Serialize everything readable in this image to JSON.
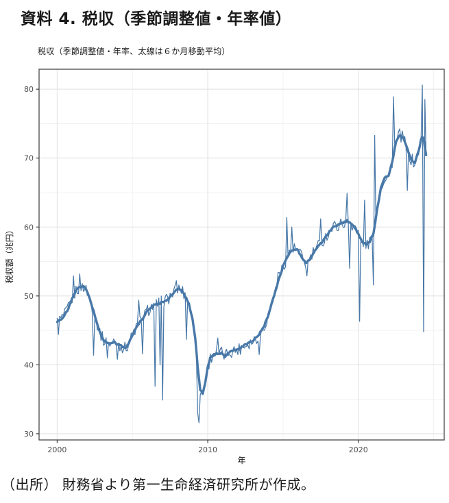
{
  "page": {
    "title": "資料 4. 税収（季節調整値・年率値）",
    "source_note": "（出所） 財務省より第一生命経済研究所が作成。"
  },
  "chart_data": {
    "type": "line",
    "title": "税収（季節調整値・年率、太線は６か月移動平均）",
    "xlabel": "年",
    "ylabel": "税収額（兆円）",
    "xlim": [
      1998.8,
      2025.7
    ],
    "ylim": [
      29.1,
      82.9
    ],
    "x_major_ticks": [
      2000,
      2010,
      2020
    ],
    "x_minor_gridlines": [
      2005,
      2015,
      2025
    ],
    "y_major_ticks": [
      30,
      40,
      50,
      60,
      70,
      80
    ],
    "y_minor_gridlines": [
      35,
      45,
      55,
      65,
      75
    ],
    "grid": true,
    "legend_position": "none",
    "x_start": 2000.0,
    "x_end": 2024.5,
    "x_step_months": 1,
    "noise_amplitude": 0.95,
    "ma_wiggle_amplitude": 0.12,
    "series": [
      {
        "name": "税収（月次、季節調整値・年率）",
        "role": "monthly-thin",
        "derive": "ma6_plus_noise_and_spikes",
        "spikes": [
          [
            2000.083,
            44.4
          ],
          [
            2001.083,
            52.9
          ],
          [
            2001.5,
            53.2
          ],
          [
            2002.417,
            41.4
          ],
          [
            2003.333,
            41.0
          ],
          [
            2004.0,
            40.8
          ],
          [
            2005.417,
            49.4
          ],
          [
            2005.667,
            41.6
          ],
          [
            2006.5,
            36.9
          ],
          [
            2006.833,
            40.0
          ],
          [
            2007.0,
            34.9
          ],
          [
            2007.917,
            52.2
          ],
          [
            2008.583,
            43.7
          ],
          [
            2009.333,
            33.0
          ],
          [
            2009.45,
            31.6
          ],
          [
            2010.667,
            43.9
          ],
          [
            2013.417,
            41.5
          ],
          [
            2014.667,
            53.4
          ],
          [
            2015.25,
            61.4
          ],
          [
            2015.583,
            60.0
          ],
          [
            2016.583,
            52.9
          ],
          [
            2017.5,
            61.2
          ],
          [
            2019.25,
            64.9
          ],
          [
            2019.417,
            54.0
          ],
          [
            2020.083,
            46.3
          ],
          [
            2020.417,
            63.9
          ],
          [
            2021.0,
            51.6
          ],
          [
            2021.083,
            73.3
          ],
          [
            2022.333,
            78.9
          ],
          [
            2023.25,
            65.3
          ],
          [
            2024.25,
            80.6
          ],
          [
            2024.333,
            44.8
          ],
          [
            2024.417,
            78.5
          ],
          [
            2024.5,
            70.4
          ]
        ]
      },
      {
        "name": "６か月移動平均",
        "role": "ma6-thick",
        "points": [
          [
            2000.0,
            46.2
          ],
          [
            2000.25,
            46.6
          ],
          [
            2000.5,
            47.2
          ],
          [
            2000.75,
            48.2
          ],
          [
            2001.0,
            49.6
          ],
          [
            2001.25,
            50.8
          ],
          [
            2001.5,
            51.3
          ],
          [
            2001.75,
            51.4
          ],
          [
            2002.0,
            50.6
          ],
          [
            2002.25,
            49.0
          ],
          [
            2002.5,
            47.2
          ],
          [
            2002.75,
            45.3
          ],
          [
            2003.0,
            43.9
          ],
          [
            2003.25,
            43.2
          ],
          [
            2003.5,
            43.1
          ],
          [
            2003.75,
            43.3
          ],
          [
            2004.0,
            43.0
          ],
          [
            2004.25,
            42.8
          ],
          [
            2004.5,
            42.4
          ],
          [
            2004.75,
            43.1
          ],
          [
            2005.0,
            44.3
          ],
          [
            2005.25,
            45.4
          ],
          [
            2005.5,
            46.2
          ],
          [
            2005.75,
            46.9
          ],
          [
            2006.0,
            47.9
          ],
          [
            2006.25,
            48.4
          ],
          [
            2006.5,
            48.7
          ],
          [
            2006.75,
            48.9
          ],
          [
            2007.0,
            49.1
          ],
          [
            2007.25,
            49.4
          ],
          [
            2007.5,
            49.9
          ],
          [
            2007.75,
            50.5
          ],
          [
            2008.0,
            51.0
          ],
          [
            2008.25,
            50.9
          ],
          [
            2008.5,
            50.0
          ],
          [
            2008.75,
            48.8
          ],
          [
            2009.0,
            46.6
          ],
          [
            2009.17,
            43.8
          ],
          [
            2009.33,
            39.8
          ],
          [
            2009.5,
            36.3
          ],
          [
            2009.67,
            35.9
          ],
          [
            2009.83,
            37.3
          ],
          [
            2010.0,
            39.6
          ],
          [
            2010.17,
            41.0
          ],
          [
            2010.33,
            41.4
          ],
          [
            2010.58,
            41.6
          ],
          [
            2010.83,
            41.7
          ],
          [
            2011.0,
            41.6
          ],
          [
            2011.17,
            41.3
          ],
          [
            2011.42,
            41.9
          ],
          [
            2011.75,
            42.1
          ],
          [
            2012.0,
            42.2
          ],
          [
            2012.33,
            42.7
          ],
          [
            2012.67,
            43.1
          ],
          [
            2013.0,
            43.5
          ],
          [
            2013.33,
            44.2
          ],
          [
            2013.67,
            45.3
          ],
          [
            2014.0,
            47.0
          ],
          [
            2014.25,
            48.9
          ],
          [
            2014.5,
            50.8
          ],
          [
            2014.75,
            52.6
          ],
          [
            2015.0,
            54.3
          ],
          [
            2015.25,
            55.6
          ],
          [
            2015.5,
            56.4
          ],
          [
            2015.75,
            56.8
          ],
          [
            2016.0,
            56.6
          ],
          [
            2016.25,
            55.5
          ],
          [
            2016.5,
            54.8
          ],
          [
            2016.75,
            55.2
          ],
          [
            2017.0,
            56.2
          ],
          [
            2017.25,
            57.0
          ],
          [
            2017.5,
            57.6
          ],
          [
            2017.75,
            58.3
          ],
          [
            2018.0,
            59.1
          ],
          [
            2018.25,
            59.8
          ],
          [
            2018.5,
            60.2
          ],
          [
            2018.75,
            60.4
          ],
          [
            2019.0,
            60.6
          ],
          [
            2019.25,
            60.9
          ],
          [
            2019.5,
            60.6
          ],
          [
            2019.75,
            60.0
          ],
          [
            2020.0,
            59.0
          ],
          [
            2020.25,
            57.9
          ],
          [
            2020.5,
            57.4
          ],
          [
            2020.75,
            57.8
          ],
          [
            2021.0,
            59.0
          ],
          [
            2021.25,
            62.5
          ],
          [
            2021.5,
            65.8
          ],
          [
            2021.75,
            67.2
          ],
          [
            2022.0,
            67.3
          ],
          [
            2022.25,
            69.5
          ],
          [
            2022.5,
            72.3
          ],
          [
            2022.75,
            73.4
          ],
          [
            2023.0,
            72.8
          ],
          [
            2023.25,
            71.4
          ],
          [
            2023.5,
            69.8
          ],
          [
            2023.75,
            69.3
          ],
          [
            2024.0,
            71.0
          ],
          [
            2024.17,
            72.8
          ],
          [
            2024.3,
            73.3
          ],
          [
            2024.42,
            71.5
          ],
          [
            2024.5,
            70.5
          ]
        ]
      }
    ],
    "colors": {
      "line": "#4878a8",
      "grid_major": "#e3e3e3",
      "grid_minor": "#efefef",
      "panel_border": "#474747",
      "tick_mark": "#333333",
      "tick_text": "#4d4d4d",
      "text": "#1a1a1a",
      "panel_bg": "#ffffff"
    }
  }
}
